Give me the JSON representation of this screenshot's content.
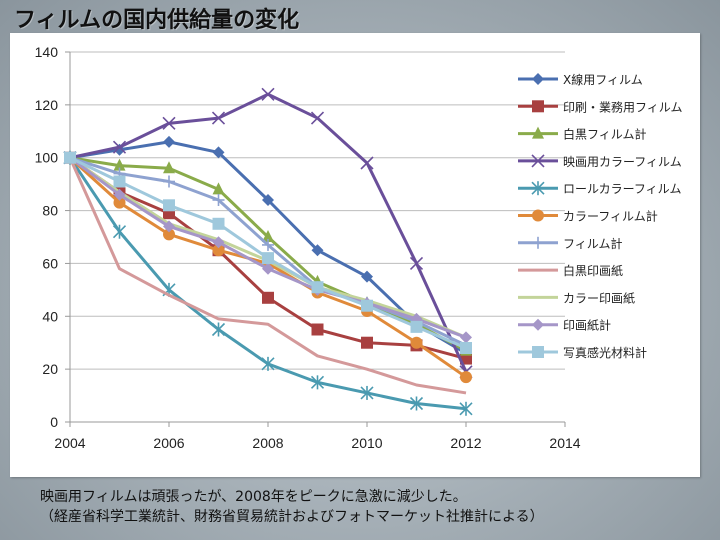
{
  "slide": {
    "title": "フィルムの国内供給量の変化",
    "caption_line1": "映画用フィルムは頑張ったが、2008年をピークに急激に減少した。",
    "caption_line2": "（経産省科学工業統計、財務省貿易統計およびフォトマーケット社推計による）"
  },
  "chart_data": {
    "type": "line",
    "title": "",
    "xlabel": "",
    "ylabel": "",
    "xlim": [
      2004,
      2014
    ],
    "ylim": [
      0,
      140
    ],
    "xticks": [
      2004,
      2006,
      2008,
      2010,
      2012,
      2014
    ],
    "yticks": [
      0,
      20,
      40,
      60,
      80,
      100,
      120,
      140
    ],
    "grid": "horizontal",
    "legend_position": "right",
    "x": [
      2004,
      2005,
      2006,
      2007,
      2008,
      2009,
      2010,
      2011,
      2012
    ],
    "series": [
      {
        "name": "X線用フィルム",
        "color": "#4a6fb0",
        "marker": "diamond",
        "values": [
          100,
          103,
          106,
          102,
          84,
          65,
          55,
          37,
          26
        ]
      },
      {
        "name": "印刷・業務用フィルム",
        "color": "#a84040",
        "marker": "square",
        "values": [
          100,
          87,
          79,
          65,
          47,
          35,
          30,
          29,
          24
        ]
      },
      {
        "name": "白黒フィルム計",
        "color": "#8aab4a",
        "marker": "triangle",
        "values": [
          100,
          97,
          96,
          88,
          70,
          53,
          45,
          37,
          27
        ]
      },
      {
        "name": "映画用カラーフィルム",
        "color": "#6a4f9a",
        "marker": "x",
        "values": [
          100,
          104,
          113,
          115,
          124,
          115,
          98,
          60,
          19
        ]
      },
      {
        "name": "ロールカラーフィルム",
        "color": "#4a9ab0",
        "marker": "asterisk",
        "values": [
          100,
          72,
          50,
          35,
          22,
          15,
          11,
          7,
          5
        ]
      },
      {
        "name": "カラーフィルム計",
        "color": "#e08a3a",
        "marker": "circle",
        "values": [
          100,
          83,
          71,
          65,
          60,
          49,
          42,
          30,
          17
        ]
      },
      {
        "name": "フィルム計",
        "color": "#8ea2d0",
        "marker": "plus",
        "values": [
          100,
          94,
          91,
          84,
          67,
          51,
          45,
          38,
          29
        ]
      },
      {
        "name": "白黒印画紙",
        "color": "#d4999a",
        "marker": "none",
        "values": [
          100,
          58,
          48,
          39,
          37,
          25,
          20,
          14,
          11
        ]
      },
      {
        "name": "カラー印画紙",
        "color": "#c3d49a",
        "marker": "none",
        "values": [
          100,
          87,
          75,
          69,
          61,
          51,
          46,
          40,
          32
        ]
      },
      {
        "name": "印画紙計",
        "color": "#a596c8",
        "marker": "diamond",
        "values": [
          100,
          86,
          74,
          68,
          58,
          50,
          45,
          39,
          32
        ]
      },
      {
        "name": "写真感光材料計",
        "color": "#9fc8dc",
        "marker": "square",
        "values": [
          100,
          91,
          82,
          75,
          62,
          51,
          44,
          36,
          28
        ]
      }
    ]
  }
}
